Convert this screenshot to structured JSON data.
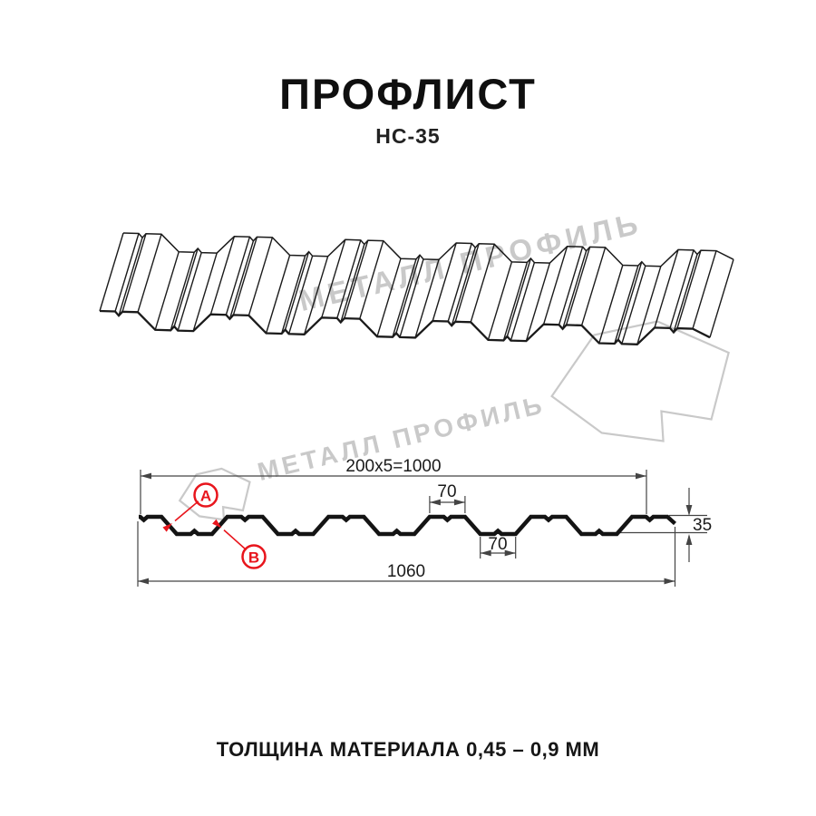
{
  "header": {
    "title": "ПРОФЛИСТ",
    "subtitle": "НС-35"
  },
  "watermark": {
    "brand": "МЕТАЛЛ ПРОФИЛЬ"
  },
  "section": {
    "dim_pitch": "200x5=1000",
    "dim_rib_top": "70",
    "dim_rib_bottom": "70",
    "dim_height": "35",
    "dim_overall": "1060",
    "marker_a": "A",
    "marker_b": "B"
  },
  "footer": {
    "note": "ТОЛЩИНА МАТЕРИАЛА 0,45 – 0,9 ММ"
  },
  "colors": {
    "accent_red": "#e8151c",
    "watermark_gray": "#c9c9c9",
    "line_black": "#1a1a1a",
    "dim_gray": "#444444"
  }
}
